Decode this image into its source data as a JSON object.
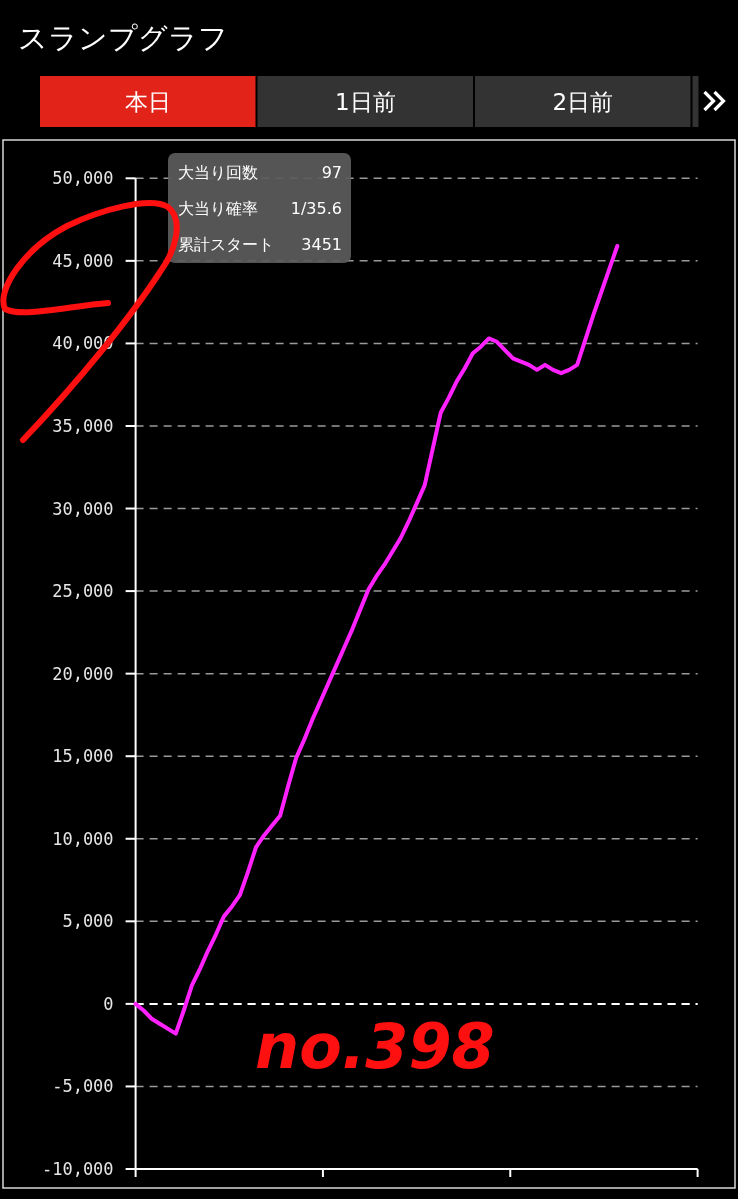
{
  "chart_data": {
    "type": "line",
    "title": "スランプグラフ",
    "categories": [
      null,
      null,
      null,
      null,
      null,
      null,
      null,
      null,
      null,
      null,
      null,
      null,
      null,
      null,
      null,
      null,
      null,
      null,
      null,
      null,
      null,
      null,
      null,
      null,
      null,
      null,
      null,
      null,
      null,
      null,
      null,
      null,
      null,
      null,
      null,
      null,
      null,
      null,
      null,
      null,
      null,
      null,
      null,
      null,
      null,
      null,
      null,
      null,
      null,
      null,
      null,
      null,
      null,
      null,
      null,
      null,
      null,
      null,
      null,
      null,
      null,
      null,
      null,
      null,
      null,
      null,
      null,
      null,
      null,
      null,
      null
    ],
    "series": [
      {
        "color": "#ff22ff",
        "values": [
          0,
          -400,
          -900,
          -1200,
          -1500,
          -1800,
          -400,
          1100,
          2100,
          3200,
          4200,
          5300,
          5900,
          6600,
          8000,
          9500,
          10200,
          10800,
          11400,
          13200,
          14900,
          16000,
          17200,
          18300,
          19400,
          20500,
          21600,
          22700,
          23900,
          25100,
          25900,
          26600,
          27400,
          28200,
          29200,
          30300,
          31400,
          33600,
          35800,
          36700,
          37700,
          38500,
          39400,
          39800,
          40300,
          40100,
          39600,
          39100,
          38900,
          38700,
          38400,
          38700,
          38400,
          38200,
          38400,
          38700,
          40200,
          41700,
          43100,
          44500,
          45900,
          null,
          null,
          null,
          null,
          null,
          null,
          null,
          null,
          null,
          null
        ]
      }
    ],
    "ylim": [
      -10000,
      50000
    ],
    "yticks": [
      {
        "value": -10000,
        "label": "-10,000"
      },
      {
        "value": -5000,
        "label": "-5,000"
      },
      0,
      {
        "value": 5000,
        "label": "5,000"
      },
      {
        "value": 10000,
        "label": "10,000"
      },
      {
        "value": 15000,
        "label": "15,000"
      },
      {
        "value": 20000,
        "label": "20,000"
      },
      {
        "value": 25000,
        "label": "25,000"
      },
      {
        "value": 30000,
        "label": "30,000"
      },
      {
        "value": 35000,
        "label": "35,000"
      },
      {
        "value": 40000,
        "label": "40,000"
      },
      {
        "value": 45000,
        "label": "45,000"
      },
      {
        "value": 50000,
        "label": "50,000"
      }
    ],
    "grid": "y",
    "ref_lines": [
      {
        "axis": "y",
        "value": 0,
        "color": "#ffffff",
        "line_style": "dashed"
      }
    ],
    "annotations": [
      "本日",
      "1日前",
      "2日前",
      "大当り回数\t97",
      "大当り確率\t1/35.6",
      "累計スタート\t3451",
      "no.398"
    ]
  }
}
